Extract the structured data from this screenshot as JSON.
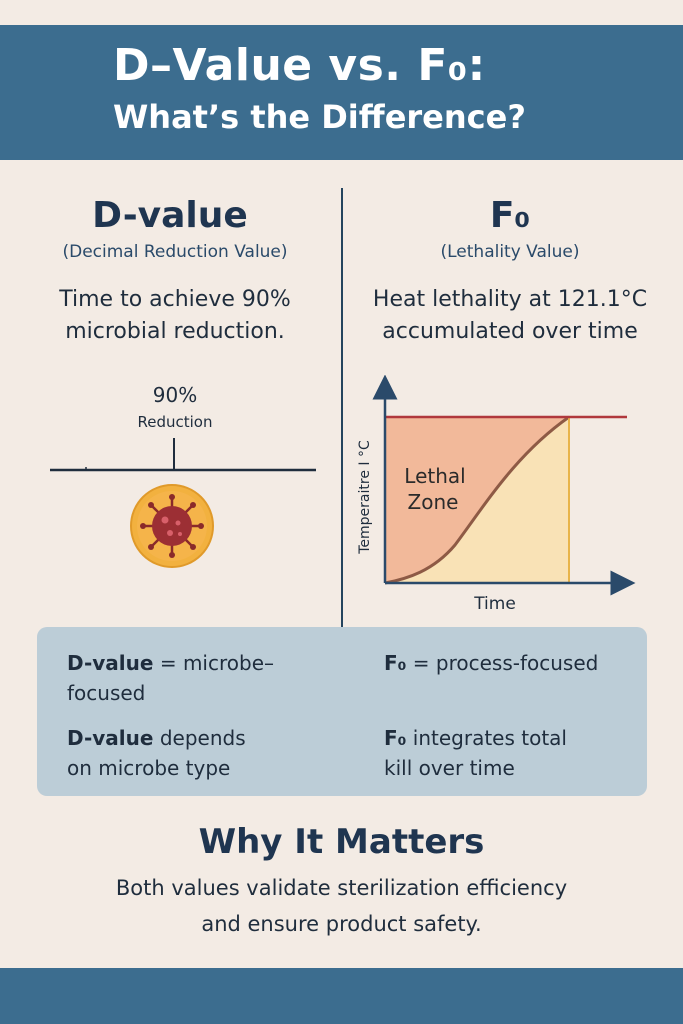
{
  "header": {
    "title_line1": "D–Value vs. F₀:",
    "title_line2": "What’s the Difference?"
  },
  "dvalue": {
    "title": "D-value",
    "subtitle": "(Decimal Reduction Value)",
    "desc_line1": "Time to achieve 90%",
    "desc_line2": "microbial reduction.",
    "graphic_percent": "90%",
    "graphic_label": "Reduction",
    "microbe_icon": "virus-icon"
  },
  "f0": {
    "title": "F₀",
    "subtitle": "(Lethality Value)",
    "desc_line1": "Heat lethality at 121.1°C",
    "desc_line2": "accumulated over time"
  },
  "chart_data": {
    "type": "area",
    "xlabel": "Time",
    "ylabel": "Temperaitre I °C",
    "zone_label_line1": "Lethal",
    "zone_label_line2": "Zone",
    "colors": {
      "reference_line": "#b0383c",
      "lethal_zone": "#f2b99a",
      "under_curve": "#f9e2b6",
      "curve": "#8e5a45",
      "axis": "#2a4a6a"
    }
  },
  "comparison": {
    "left_1_bold": "D-value",
    "left_1_rest": " = microbe–",
    "left_1_line2": "focused",
    "left_2_bold": "D-value",
    "left_2_rest": "  depends",
    "left_2_line2": "on microbe type",
    "right_1_bold": "F₀",
    "right_1_rest": " = process-focused",
    "right_2_bold": "F₀",
    "right_2_rest": " integrates total",
    "right_2_line2": "kill over time"
  },
  "why": {
    "title": "Why It Matters",
    "line1": "Both values validate sterilization efficiency",
    "line2": "and ensure product safety."
  }
}
